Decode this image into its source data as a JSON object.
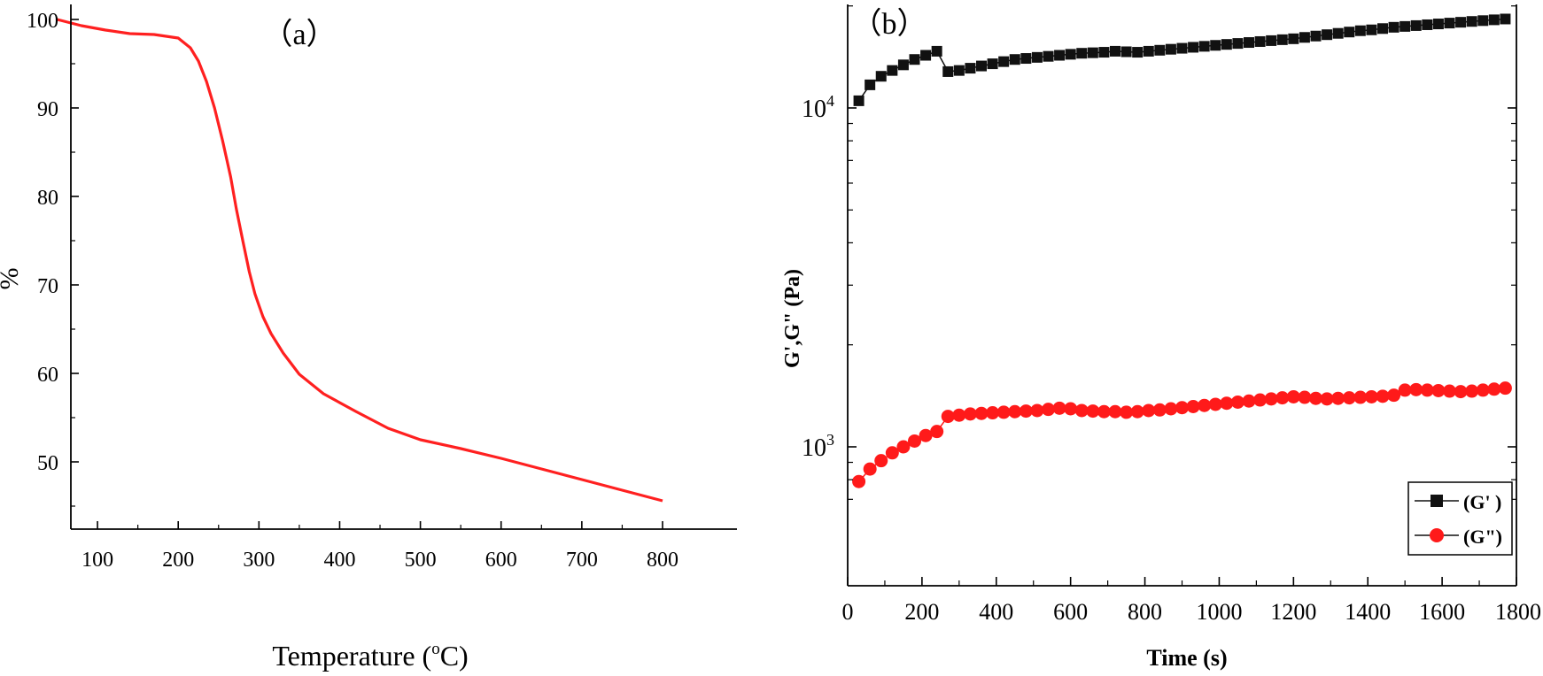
{
  "chart_data": [
    {
      "panel_label": "（a）",
      "type": "line",
      "title": "",
      "xlabel": "Temperature (",
      "xlabel_unit_sup": "o",
      "xlabel_unit_tail": "C)",
      "ylabel": "%",
      "xlim": [
        50,
        800
      ],
      "ylim": [
        43.5,
        102
      ],
      "xticks": [
        100,
        200,
        300,
        400,
        500,
        600,
        700,
        800
      ],
      "yticks": [
        50,
        60,
        70,
        80,
        90,
        100
      ],
      "grid": false,
      "series": [
        {
          "color": "#ff2020",
          "x": [
            50,
            80,
            110,
            140,
            170,
            200,
            215,
            225,
            235,
            245,
            255,
            265,
            272,
            280,
            288,
            295,
            300,
            305,
            315,
            330,
            350,
            380,
            420,
            460,
            500,
            550,
            600,
            650,
            700,
            750,
            800
          ],
          "y": [
            100,
            99.3,
            98.8,
            98.4,
            98.3,
            97.9,
            96.8,
            95.3,
            93,
            90,
            86.3,
            82.2,
            78.6,
            75,
            71.5,
            69,
            67.7,
            66.4,
            64.5,
            62.3,
            59.9,
            57.7,
            55.7,
            53.8,
            52.5,
            51.5,
            50.4,
            49.2,
            48,
            46.8,
            45.6
          ]
        }
      ]
    },
    {
      "panel_label": "（b）",
      "type": "scatter",
      "title": "",
      "xlabel": "Time (s)",
      "ylabel": "G',G\" (Pa)",
      "xlim": [
        0,
        1800
      ],
      "ylim": [
        600,
        20000
      ],
      "yscale": "log",
      "xticks": [
        0,
        200,
        400,
        600,
        800,
        1000,
        1200,
        1400,
        1600,
        1800
      ],
      "ytick_labels": [
        {
          "value": 1000,
          "base": "10",
          "exp": "3"
        },
        {
          "value": 10000,
          "base": "10",
          "exp": "4"
        }
      ],
      "grid": false,
      "legend_position": "bottom-right",
      "series": [
        {
          "name": "(G' )",
          "color": "#111111",
          "marker": "square",
          "x": [
            30,
            60,
            90,
            120,
            150,
            180,
            210,
            240,
            270,
            300,
            330,
            360,
            390,
            420,
            450,
            480,
            510,
            540,
            570,
            600,
            630,
            660,
            690,
            720,
            750,
            780,
            810,
            840,
            870,
            900,
            930,
            960,
            990,
            1020,
            1050,
            1080,
            1110,
            1140,
            1170,
            1200,
            1230,
            1260,
            1290,
            1320,
            1350,
            1380,
            1410,
            1440,
            1470,
            1500,
            1530,
            1560,
            1590,
            1620,
            1650,
            1680,
            1710,
            1740,
            1770
          ],
          "y": [
            10500,
            11700,
            12400,
            12900,
            13400,
            13900,
            14300,
            14700,
            12800,
            12900,
            13100,
            13300,
            13500,
            13700,
            13900,
            14000,
            14100,
            14200,
            14300,
            14400,
            14500,
            14550,
            14600,
            14700,
            14650,
            14600,
            14700,
            14800,
            14900,
            15000,
            15100,
            15200,
            15300,
            15400,
            15500,
            15600,
            15700,
            15800,
            15900,
            16000,
            16150,
            16300,
            16450,
            16600,
            16750,
            16900,
            17000,
            17150,
            17300,
            17400,
            17500,
            17600,
            17700,
            17800,
            17900,
            18000,
            18100,
            18200,
            18300
          ]
        },
        {
          "name": "(G\")",
          "color": "#ff1a1a",
          "marker": "circle",
          "x": [
            30,
            60,
            90,
            120,
            150,
            180,
            210,
            240,
            270,
            300,
            330,
            360,
            390,
            420,
            450,
            480,
            510,
            540,
            570,
            600,
            630,
            660,
            690,
            720,
            750,
            780,
            810,
            840,
            870,
            900,
            930,
            960,
            990,
            1020,
            1050,
            1080,
            1110,
            1140,
            1170,
            1200,
            1230,
            1260,
            1290,
            1320,
            1350,
            1380,
            1410,
            1440,
            1470,
            1500,
            1530,
            1560,
            1590,
            1620,
            1650,
            1680,
            1710,
            1740,
            1770
          ],
          "y": [
            790,
            860,
            910,
            960,
            1000,
            1040,
            1080,
            1110,
            1230,
            1240,
            1250,
            1255,
            1260,
            1265,
            1270,
            1275,
            1280,
            1290,
            1300,
            1295,
            1280,
            1275,
            1270,
            1270,
            1265,
            1270,
            1280,
            1285,
            1295,
            1305,
            1315,
            1325,
            1335,
            1345,
            1355,
            1365,
            1375,
            1385,
            1395,
            1405,
            1400,
            1390,
            1385,
            1390,
            1395,
            1400,
            1405,
            1410,
            1420,
            1470,
            1475,
            1470,
            1465,
            1460,
            1455,
            1460,
            1470,
            1480,
            1490
          ]
        }
      ]
    }
  ]
}
